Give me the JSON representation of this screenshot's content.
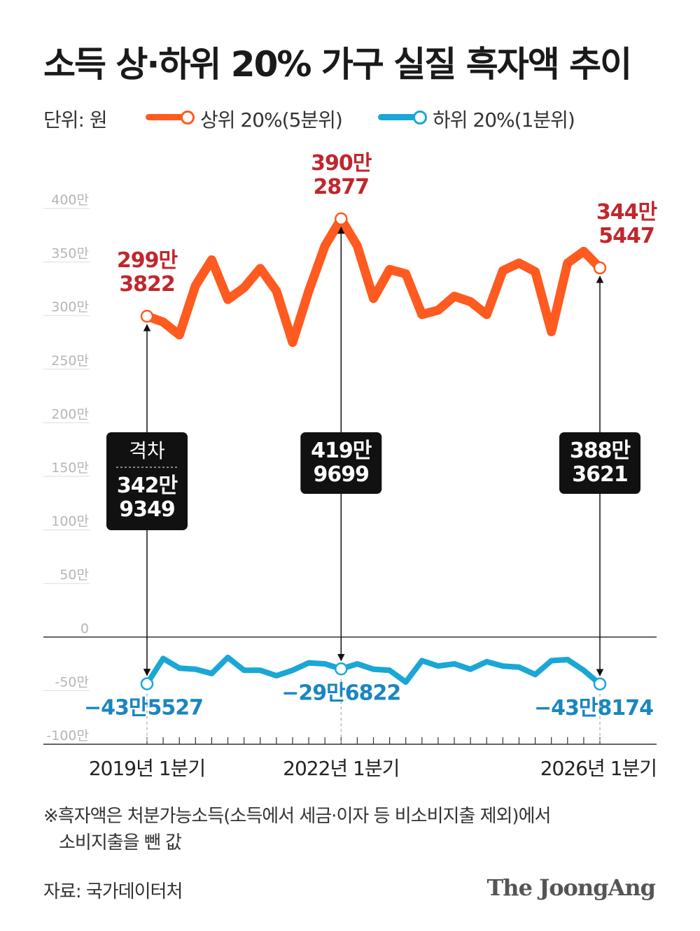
{
  "title": "소득 상·하위 20% 가구 실질 흑자액 추이",
  "unit_label": "단위: 원",
  "source": "자료: 국가데이터처",
  "brand": "The JoongAng",
  "footnote": {
    "line1": "※흑자액은 처분가능소득(소득에서 세금·이자 등 비소비지출 제외)에서",
    "line2": "소비지출을 뺀 값"
  },
  "colors": {
    "top": "#ff5a1f",
    "bottom": "#1aa7d6",
    "top_label": "#c0272d",
    "bottom_label": "#1a86c0",
    "box": "#111111"
  },
  "chart_data": {
    "type": "line",
    "unit": "만",
    "ylim": [
      -100,
      400
    ],
    "yticks": [
      {
        "v": 400,
        "label": "400만"
      },
      {
        "v": 350,
        "label": "350만"
      },
      {
        "v": 300,
        "label": "300만"
      },
      {
        "v": 250,
        "label": "250만"
      },
      {
        "v": 200,
        "label": "200만"
      },
      {
        "v": 150,
        "label": "150만"
      },
      {
        "v": 100,
        "label": "100만"
      },
      {
        "v": 50,
        "label": "50만"
      },
      {
        "v": 0,
        "label": "0"
      },
      {
        "v": -50,
        "label": "-50만"
      },
      {
        "v": -100,
        "label": "-100만"
      }
    ],
    "x_count": 29,
    "x_labels": [
      {
        "i": 0,
        "label": "2019년 1분기"
      },
      {
        "i": 12,
        "label": "2022년 1분기"
      },
      {
        "i": 28,
        "label": "2026년 1분기"
      }
    ],
    "series": [
      {
        "name": "상위 20%(5분위)",
        "values": [
          299.4,
          294,
          282,
          328,
          352,
          315,
          326,
          344,
          323,
          275,
          323,
          365,
          390.3,
          365,
          316,
          343,
          339,
          301,
          305,
          318,
          313,
          301,
          342,
          349,
          341,
          285,
          349,
          360,
          344.5
        ]
      },
      {
        "name": "하위 20%(1분위)",
        "values": [
          -43.6,
          -20,
          -29,
          -30,
          -34,
          -19,
          -31,
          -31,
          -36,
          -31,
          -24,
          -25,
          -29.7,
          -25,
          -30,
          -31,
          -42,
          -22,
          -27,
          -25,
          -30,
          -23,
          -27,
          -28,
          -35,
          -22,
          -21,
          -31,
          -43.8
        ]
      }
    ],
    "annotations": [
      {
        "i": 0,
        "top": "299만\n3822",
        "bottom": "−43만5527",
        "gap": "342만\n9349",
        "gap_title": "격차"
      },
      {
        "i": 12,
        "top": "390만\n2877",
        "bottom": "−29만6822",
        "gap": "419만\n9699",
        "gap_title": ""
      },
      {
        "i": 28,
        "top": "344만\n5447",
        "bottom": "−43만8174",
        "gap": "388만\n3621",
        "gap_title": ""
      }
    ]
  }
}
